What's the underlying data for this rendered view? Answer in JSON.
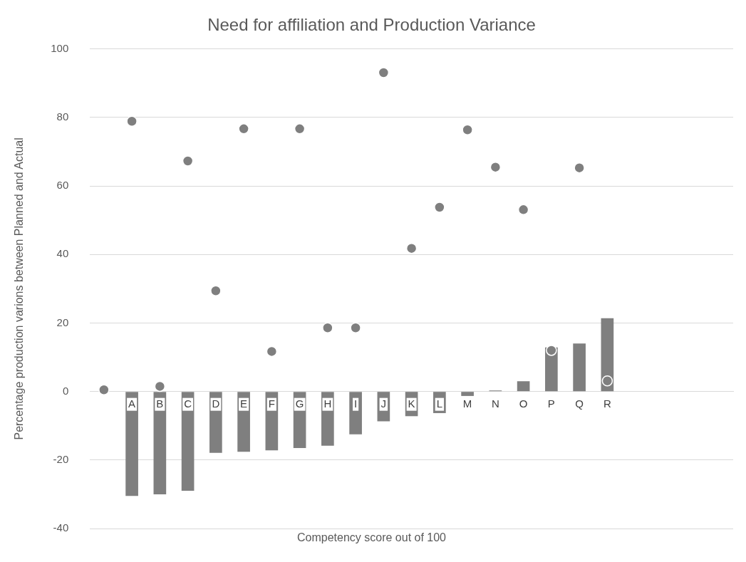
{
  "chart_data": {
    "type": "bar",
    "title": "Need for affiliation and Production Variance",
    "xlabel": "Competency score out of 100",
    "ylabel": "Percentage production varions between Planned and Actual",
    "categories": [
      null,
      "A",
      "B",
      "C",
      "D",
      "E",
      "F",
      "G",
      "H",
      "I",
      "J",
      "K",
      "L",
      "M",
      "N",
      "O",
      "P",
      "Q",
      "R",
      null,
      null,
      null,
      null
    ],
    "series": [
      {
        "color": "#7f7f7f",
        "values": [
          null,
          -30.5,
          -30,
          -29,
          -17.9,
          -17.6,
          -17.2,
          -16.5,
          -15.8,
          -12.5,
          -8.7,
          -7.2,
          -6.3,
          -1.3,
          0.3,
          3,
          12.9,
          14,
          21.4,
          null,
          null,
          null,
          null
        ]
      },
      {
        "type": "scatter",
        "color": "#7f7f7f",
        "marker": "circle",
        "values": [
          0.5,
          78.9,
          1.5,
          67.3,
          29.4,
          76.7,
          11.7,
          76.7,
          18.6,
          18.6,
          93.1,
          41.8,
          53.8,
          76.4,
          65.5,
          53.1,
          12,
          65.3,
          3.1,
          null,
          null,
          null,
          null
        ]
      }
    ],
    "ylim": [
      -40,
      100
    ],
    "yticks": [
      -40,
      -20,
      0,
      20,
      40,
      60,
      80,
      100
    ],
    "grid": "y",
    "legend": false
  }
}
